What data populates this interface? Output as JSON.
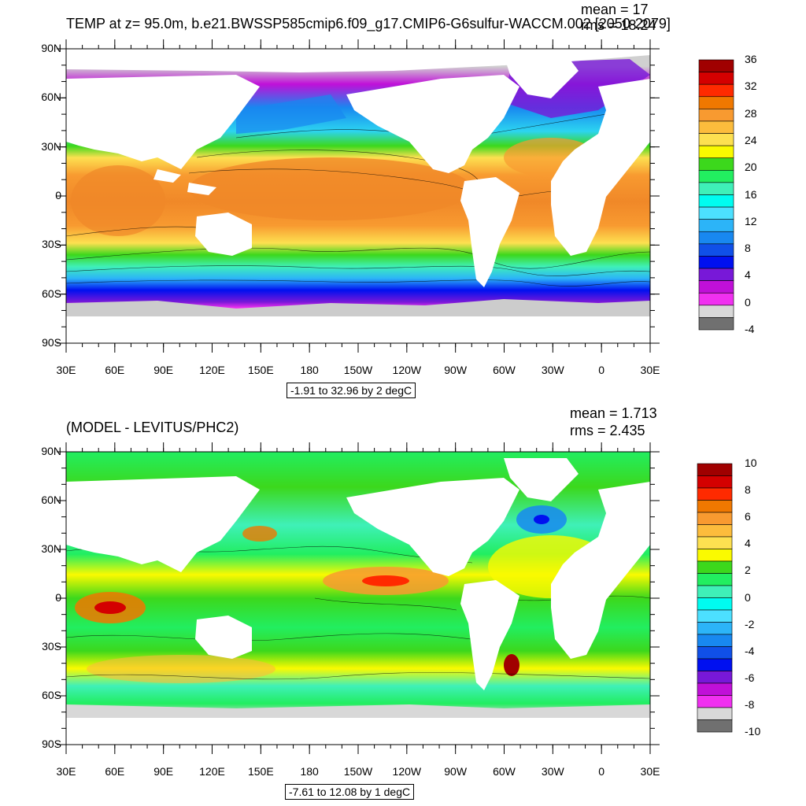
{
  "top": {
    "title": "TEMP at z=  95.0m, b.e21.BWSSP585cmip6.f09_g17.CMIP6-G6sulfur-WACCM.002 [2050-2079]",
    "mean": "mean = 17",
    "rms": "rms = 18.24",
    "range": "-1.91 to 32.96 by 2 degC",
    "colorbar": {
      "labels": [
        "36",
        "32",
        "28",
        "24",
        "20",
        "16",
        "12",
        "8",
        "4",
        "0",
        "-4"
      ],
      "colors": [
        "#a00000",
        "#d40000",
        "#ff2a00",
        "#f07800",
        "#f89a30",
        "#fcbc3c",
        "#fde050",
        "#fafa00",
        "#3cd81c",
        "#22ee60",
        "#3ff0b8",
        "#00fcf0",
        "#4ce0ff",
        "#2cb4f8",
        "#1888f0",
        "#1050e8",
        "#0010f0",
        "#7818d8",
        "#c010d8",
        "#f030f0",
        "#d8d8d8",
        "#707070"
      ]
    }
  },
  "bottom": {
    "title": "(MODEL - LEVITUS/PHC2)",
    "mean": "mean = 1.713",
    "rms": "rms = 2.435",
    "range": "-7.61 to 12.08 by 1 degC",
    "colorbar": {
      "labels": [
        "10",
        "8",
        "6",
        "4",
        "2",
        "0",
        "-2",
        "-4",
        "-6",
        "-8",
        "-10"
      ],
      "colors": [
        "#a00000",
        "#d40000",
        "#ff2a00",
        "#f07800",
        "#f89a30",
        "#fcbc3c",
        "#fde050",
        "#fafa00",
        "#3cd81c",
        "#22ee60",
        "#3ff0b8",
        "#00fcf0",
        "#4ce0ff",
        "#2cb4f8",
        "#1888f0",
        "#1050e8",
        "#0010f0",
        "#7818d8",
        "#c010d8",
        "#f030f0",
        "#d8d8d8",
        "#707070"
      ]
    }
  },
  "axes": {
    "lat_labels": [
      "90N",
      "60N",
      "30N",
      "0",
      "30S",
      "60S",
      "90S"
    ],
    "lon_labels": [
      "30E",
      "60E",
      "90E",
      "120E",
      "150E",
      "180",
      "150W",
      "120W",
      "90W",
      "60W",
      "30W",
      "0",
      "30E"
    ]
  },
  "colors": {
    "land": "#ffffff",
    "ice": "#cccccc"
  }
}
